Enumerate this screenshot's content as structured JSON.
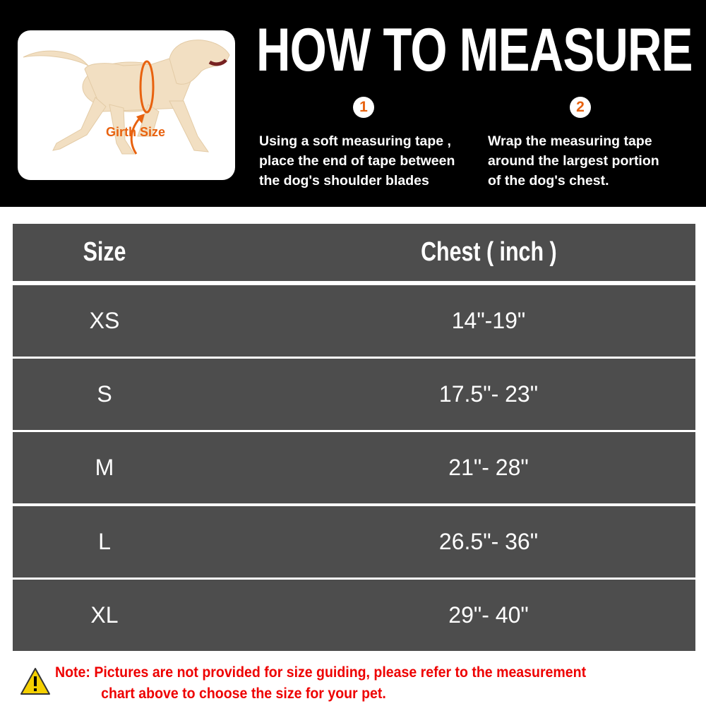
{
  "header": {
    "title": "HOW TO MEASURE",
    "image_label": "Girth Size",
    "steps": [
      {
        "number": "1",
        "lines": [
          "Using a soft measuring tape ,",
          "place the end of tape between",
          "the dog's shoulder blades"
        ]
      },
      {
        "number": "2",
        "lines": [
          "Wrap the measuring tape",
          "around the largest portion",
          "of the dog's chest."
        ]
      }
    ]
  },
  "table": {
    "columns": [
      "Size",
      "Chest ( inch )"
    ],
    "rows": [
      {
        "size": "XS",
        "chest": "14\"-19\""
      },
      {
        "size": "S",
        "chest": "17.5\"- 23\""
      },
      {
        "size": "M",
        "chest": "21\"- 28\""
      },
      {
        "size": "L",
        "chest": "26.5\"- 36\""
      },
      {
        "size": "XL",
        "chest": "29\"- 40\""
      }
    ]
  },
  "note": {
    "line1": "Note: Pictures are not provided for size guiding, please refer to the measurement",
    "line2": "chart above to choose the size for your pet."
  },
  "colors": {
    "accent": "#e8620f",
    "row": "#4d4d4d",
    "note": "#ee0000"
  }
}
